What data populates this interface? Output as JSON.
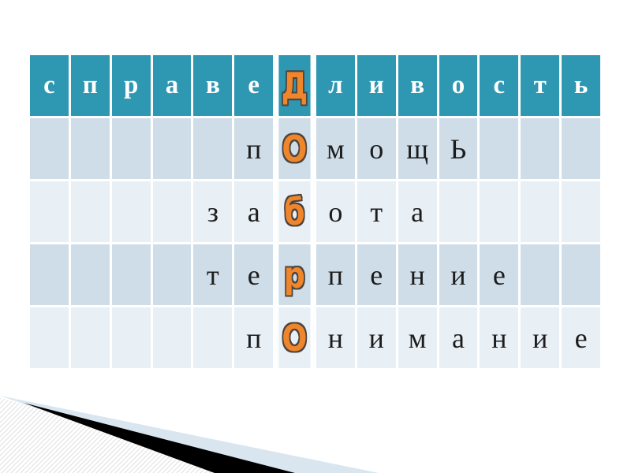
{
  "slide": {
    "kind": "presentation-slide",
    "background": "#ffffff"
  },
  "colors": {
    "header_bg": "#2e97b2",
    "row_dark": "#cfdde8",
    "row_light": "#e8eff5",
    "header_letter": "#ffffff",
    "letter": "#1c1c1c",
    "accent_letter": "#f0862c",
    "accent_outline": "#4b4540",
    "deco_blue": "#d9e6ef",
    "deco_black": "#000000",
    "deco_stripe": "#e0e0e0"
  },
  "crossword": {
    "columns": 14,
    "accent_column": 7,
    "rows": [
      {
        "type": "header",
        "letters": [
          "с",
          "п",
          "р",
          "а",
          "в",
          "е",
          "Д",
          "л",
          "и",
          "в",
          "о",
          "с",
          "т",
          "ь"
        ]
      },
      {
        "type": "dark",
        "letters": [
          "",
          "",
          "",
          "",
          "",
          "п",
          "О",
          "м",
          "о",
          "щ",
          "Ь",
          "",
          "",
          ""
        ]
      },
      {
        "type": "light",
        "letters": [
          "",
          "",
          "",
          "",
          "з",
          "а",
          "б",
          "о",
          "т",
          "а",
          "",
          "",
          "",
          ""
        ]
      },
      {
        "type": "dark",
        "letters": [
          "",
          "",
          "",
          "",
          "т",
          "е",
          "р",
          "п",
          "е",
          "н",
          "и",
          "е",
          "",
          ""
        ]
      },
      {
        "type": "light",
        "letters": [
          "",
          "",
          "",
          "",
          "",
          "п",
          "О",
          "н",
          "и",
          "м",
          "а",
          "н",
          "и",
          "е"
        ]
      }
    ],
    "horizontal_words": [
      "справедливость",
      "помощь",
      "забота",
      "терпение",
      "понимание"
    ],
    "vertical_word": "добро"
  }
}
